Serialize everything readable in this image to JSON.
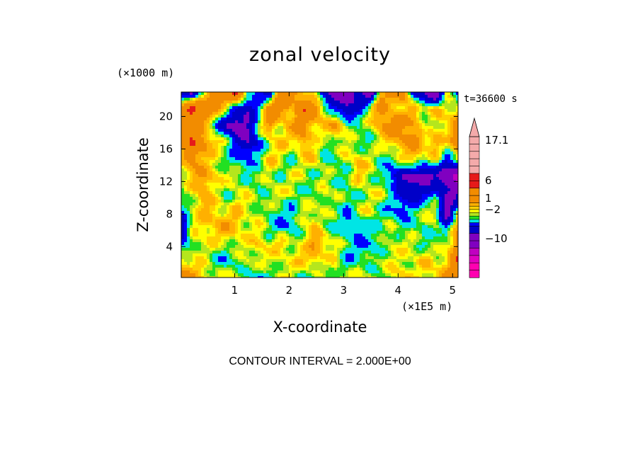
{
  "chart_data": {
    "type": "heatmap",
    "title": "zonal velocity",
    "xlabel": "X-coordinate",
    "ylabel": "Z-coordinate",
    "x_unit": "(×1E5 m)",
    "y_unit": "(×1000 m)",
    "time_label": "t=36600 s",
    "contour_interval": "CONTOUR INTERVAL = 2.000E+00",
    "xlim": [
      0.02,
      5.1
    ],
    "ylim": [
      0.2,
      23.0
    ],
    "x_ticks": [
      1,
      2,
      3,
      4,
      5
    ],
    "y_ticks": [
      4,
      8,
      12,
      16,
      20
    ],
    "colorbar": {
      "tick_labels": [
        {
          "label": "17.1",
          "value": 17.1
        },
        {
          "label": "6",
          "value": 6
        },
        {
          "label": "1",
          "value": 1
        },
        {
          "label": "−2",
          "value": -2
        },
        {
          "label": "−10",
          "value": -10
        }
      ],
      "levels": [
        {
          "value": 18,
          "color": "#f4aaaa"
        },
        {
          "value": 16,
          "color": "#f4aaaa"
        },
        {
          "value": 14,
          "color": "#f4aaaa"
        },
        {
          "value": 12,
          "color": "#f4aaaa"
        },
        {
          "value": 10,
          "color": "#f4aaaa"
        },
        {
          "value": 8,
          "color": "#e61a1a"
        },
        {
          "value": 6,
          "color": "#e61a1a"
        },
        {
          "value": 4,
          "color": "#f28c00"
        },
        {
          "value": 3,
          "color": "#f28c00"
        },
        {
          "value": 2,
          "color": "#ffb000"
        },
        {
          "value": 1.5,
          "color": "#ffd000"
        },
        {
          "value": 1,
          "color": "#ffff00"
        },
        {
          "value": 0.5,
          "color": "#b5e61d"
        },
        {
          "value": 0,
          "color": "#22e022"
        },
        {
          "value": -1,
          "color": "#00e5e5"
        },
        {
          "value": -2,
          "color": "#0000ff"
        },
        {
          "value": -4,
          "color": "#0000c8"
        },
        {
          "value": -6,
          "color": "#8000c0"
        },
        {
          "value": -8,
          "color": "#8000c0"
        },
        {
          "value": -10,
          "color": "#c000c0"
        },
        {
          "value": -12,
          "color": "#e000c0"
        },
        {
          "value": -14,
          "color": "#ff00b0"
        },
        {
          "value": -16,
          "color": "#ff00b0"
        }
      ]
    },
    "field": {
      "nx": 26,
      "nz": 12,
      "x_range": [
        0.02,
        5.1
      ],
      "z_range": [
        0.2,
        23.0
      ],
      "values": [
        [
          4,
          3,
          2,
          1,
          1,
          1,
          0,
          -1,
          0,
          1,
          1,
          0,
          0,
          0,
          1,
          1,
          1,
          1,
          0,
          1,
          2,
          1,
          1,
          2,
          3,
          4
        ],
        [
          2,
          1,
          1,
          0,
          -1,
          0,
          1,
          1,
          1,
          1,
          1,
          2,
          2,
          1,
          1,
          -1,
          0,
          0,
          1,
          1,
          1,
          1,
          2,
          1,
          2,
          6
        ],
        [
          -2,
          1,
          1,
          1,
          1,
          1,
          1,
          2,
          1,
          2,
          1,
          1,
          3,
          2,
          1,
          0,
          -1,
          -1,
          0,
          1,
          1,
          1,
          0,
          0,
          1,
          4
        ],
        [
          -4,
          1,
          2,
          2,
          3,
          2,
          1,
          1,
          0,
          -1,
          -1,
          1,
          2,
          0,
          0,
          -1,
          -1,
          0,
          0,
          1,
          0,
          0,
          0,
          1,
          -2,
          3
        ],
        [
          -1,
          1,
          2,
          2,
          1,
          2,
          1,
          1,
          0,
          0,
          -1,
          1,
          1,
          1,
          0,
          -1,
          1,
          1,
          0,
          -1,
          -2,
          0,
          1,
          1,
          -6,
          0
        ],
        [
          0,
          1,
          3,
          1,
          0,
          1,
          1,
          0,
          1,
          1,
          1,
          0,
          0,
          1,
          1,
          0,
          0,
          1,
          1,
          0,
          -2,
          -4,
          -2,
          -1,
          -4,
          -4
        ],
        [
          1,
          2,
          3,
          2,
          1,
          1,
          0,
          0,
          1,
          0,
          1,
          1,
          0,
          1,
          0,
          0,
          2,
          1,
          0,
          -2,
          -4,
          -4,
          -6,
          -4,
          -6,
          -10
        ],
        [
          2,
          4,
          2,
          1,
          0,
          -1,
          -1,
          0,
          2,
          1,
          0,
          1,
          2,
          0,
          0,
          1,
          2,
          1,
          0,
          0,
          1,
          2,
          1,
          1,
          -2,
          2
        ],
        [
          3,
          6,
          4,
          2,
          1,
          -2,
          -4,
          -2,
          1,
          2,
          1,
          3,
          1,
          0,
          1,
          1,
          0,
          0,
          1,
          2,
          3,
          4,
          2,
          3,
          1,
          4
        ],
        [
          6,
          4,
          2,
          0,
          -4,
          -6,
          -4,
          1,
          3,
          1,
          3,
          4,
          2,
          2,
          3,
          1,
          0,
          1,
          3,
          4,
          4,
          3,
          0,
          1,
          2,
          4
        ],
        [
          4,
          8,
          6,
          3,
          2,
          -2,
          -4,
          -1,
          6,
          4,
          2,
          6,
          4,
          1,
          -2,
          -4,
          -2,
          1,
          4,
          2,
          1,
          3,
          1,
          2,
          1,
          2
        ],
        [
          -4,
          -6,
          1,
          6,
          4,
          8,
          1,
          -2,
          -4,
          6,
          4,
          2,
          1,
          -4,
          -6,
          -6,
          -4,
          -6,
          2,
          4,
          6,
          -4,
          -4,
          -8,
          1,
          -2
        ]
      ]
    }
  }
}
